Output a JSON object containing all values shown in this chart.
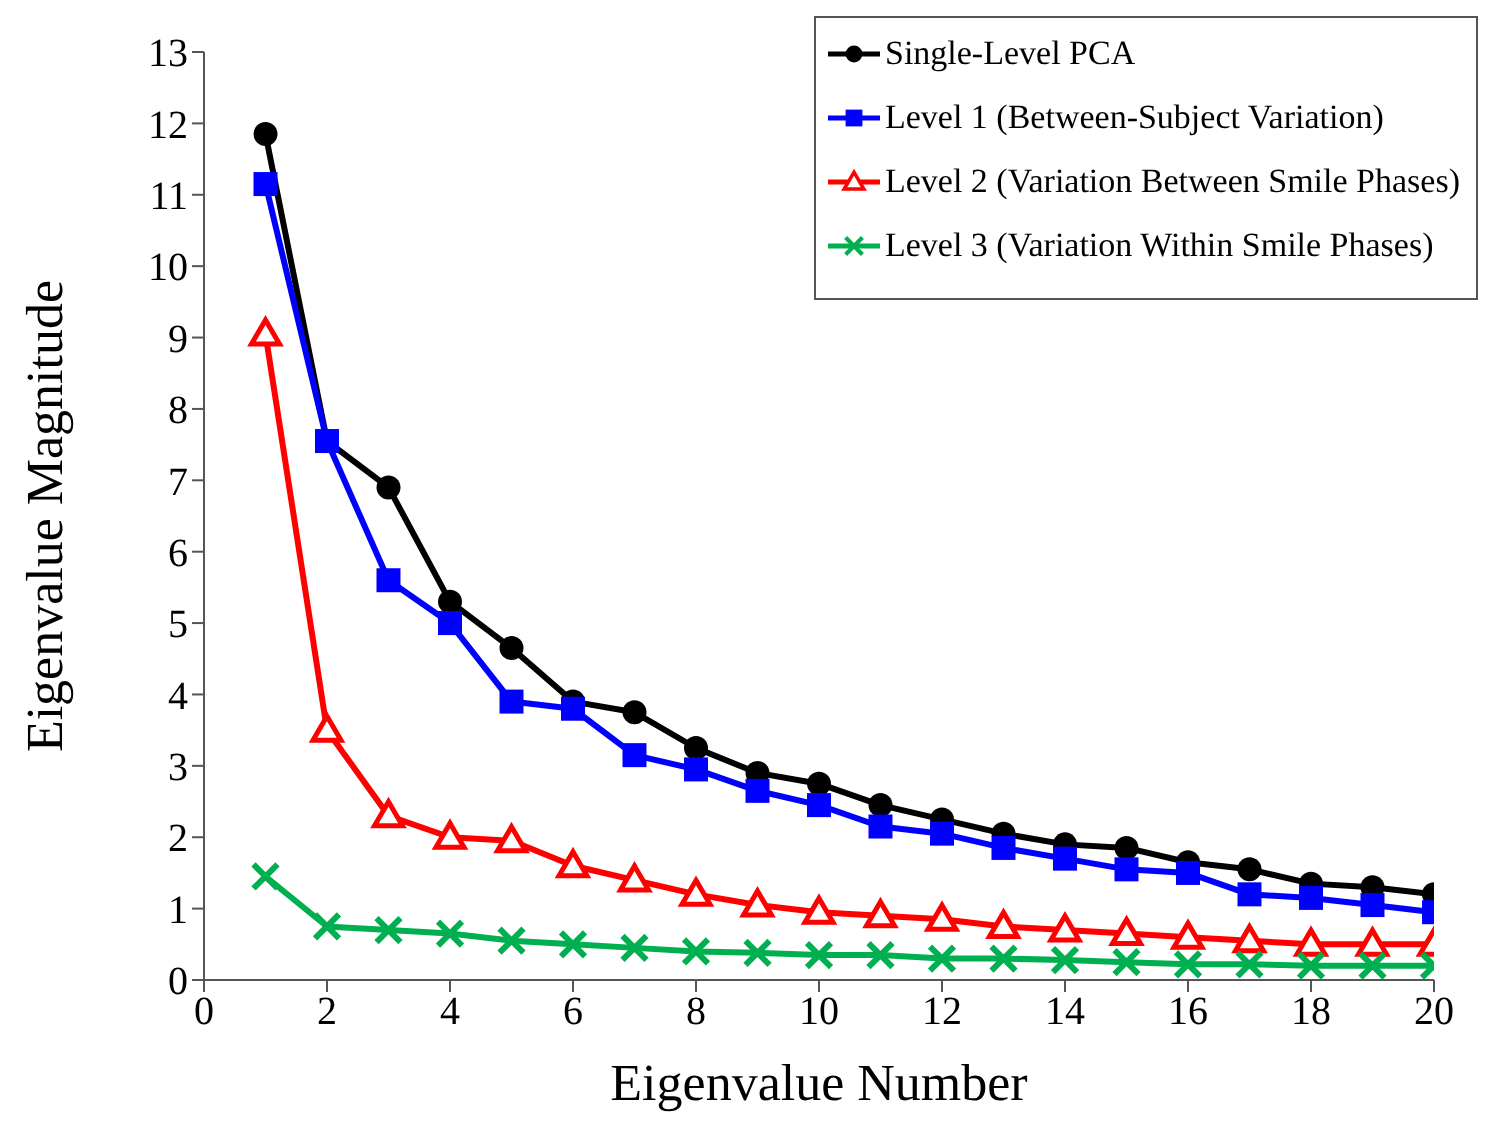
{
  "chart_data": {
    "type": "line",
    "xlabel": "Eigenvalue Number",
    "ylabel": "Eigenvalue Magnitude",
    "x": [
      1,
      2,
      3,
      4,
      5,
      6,
      7,
      8,
      9,
      10,
      11,
      12,
      13,
      14,
      15,
      16,
      17,
      18,
      19,
      20
    ],
    "xlim": [
      0,
      20
    ],
    "xticks": [
      0,
      2,
      4,
      6,
      8,
      10,
      12,
      14,
      16,
      18,
      20
    ],
    "ylim": [
      0,
      13
    ],
    "yticks": [
      0,
      1,
      2,
      3,
      4,
      5,
      6,
      7,
      8,
      9,
      10,
      11,
      12,
      13
    ],
    "grid": false,
    "legend": "top right",
    "line_style": "solid",
    "series": [
      {
        "name": "Single-Level PCA",
        "color": "#000000",
        "marker": "circle",
        "values": [
          11.85,
          7.55,
          6.9,
          5.3,
          4.65,
          3.9,
          3.75,
          3.25,
          2.9,
          2.75,
          2.45,
          2.25,
          2.05,
          1.9,
          1.85,
          1.65,
          1.55,
          1.35,
          1.3,
          1.2
        ]
      },
      {
        "name": "Level 1 (Between-Subject Variation)",
        "color": "#0000ff",
        "marker": "square",
        "values": [
          11.15,
          7.55,
          5.6,
          5.0,
          3.9,
          3.8,
          3.15,
          2.95,
          2.65,
          2.45,
          2.15,
          2.05,
          1.85,
          1.7,
          1.55,
          1.5,
          1.2,
          1.15,
          1.05,
          0.95
        ]
      },
      {
        "name": "Level 2 (Variation Between Smile Phases)",
        "color": "#ff0000",
        "marker": "triangle",
        "values": [
          9.05,
          3.5,
          2.3,
          2.0,
          1.95,
          1.6,
          1.4,
          1.2,
          1.05,
          0.95,
          0.9,
          0.85,
          0.75,
          0.7,
          0.65,
          0.6,
          0.55,
          0.5,
          0.5,
          0.5
        ]
      },
      {
        "name": "Level 3 (Variation Within Smile Phases)",
        "color": "#00b050",
        "marker": "cross",
        "values": [
          1.45,
          0.75,
          0.7,
          0.65,
          0.55,
          0.5,
          0.45,
          0.4,
          0.38,
          0.35,
          0.35,
          0.3,
          0.3,
          0.28,
          0.25,
          0.22,
          0.22,
          0.2,
          0.2,
          0.2
        ]
      }
    ]
  }
}
